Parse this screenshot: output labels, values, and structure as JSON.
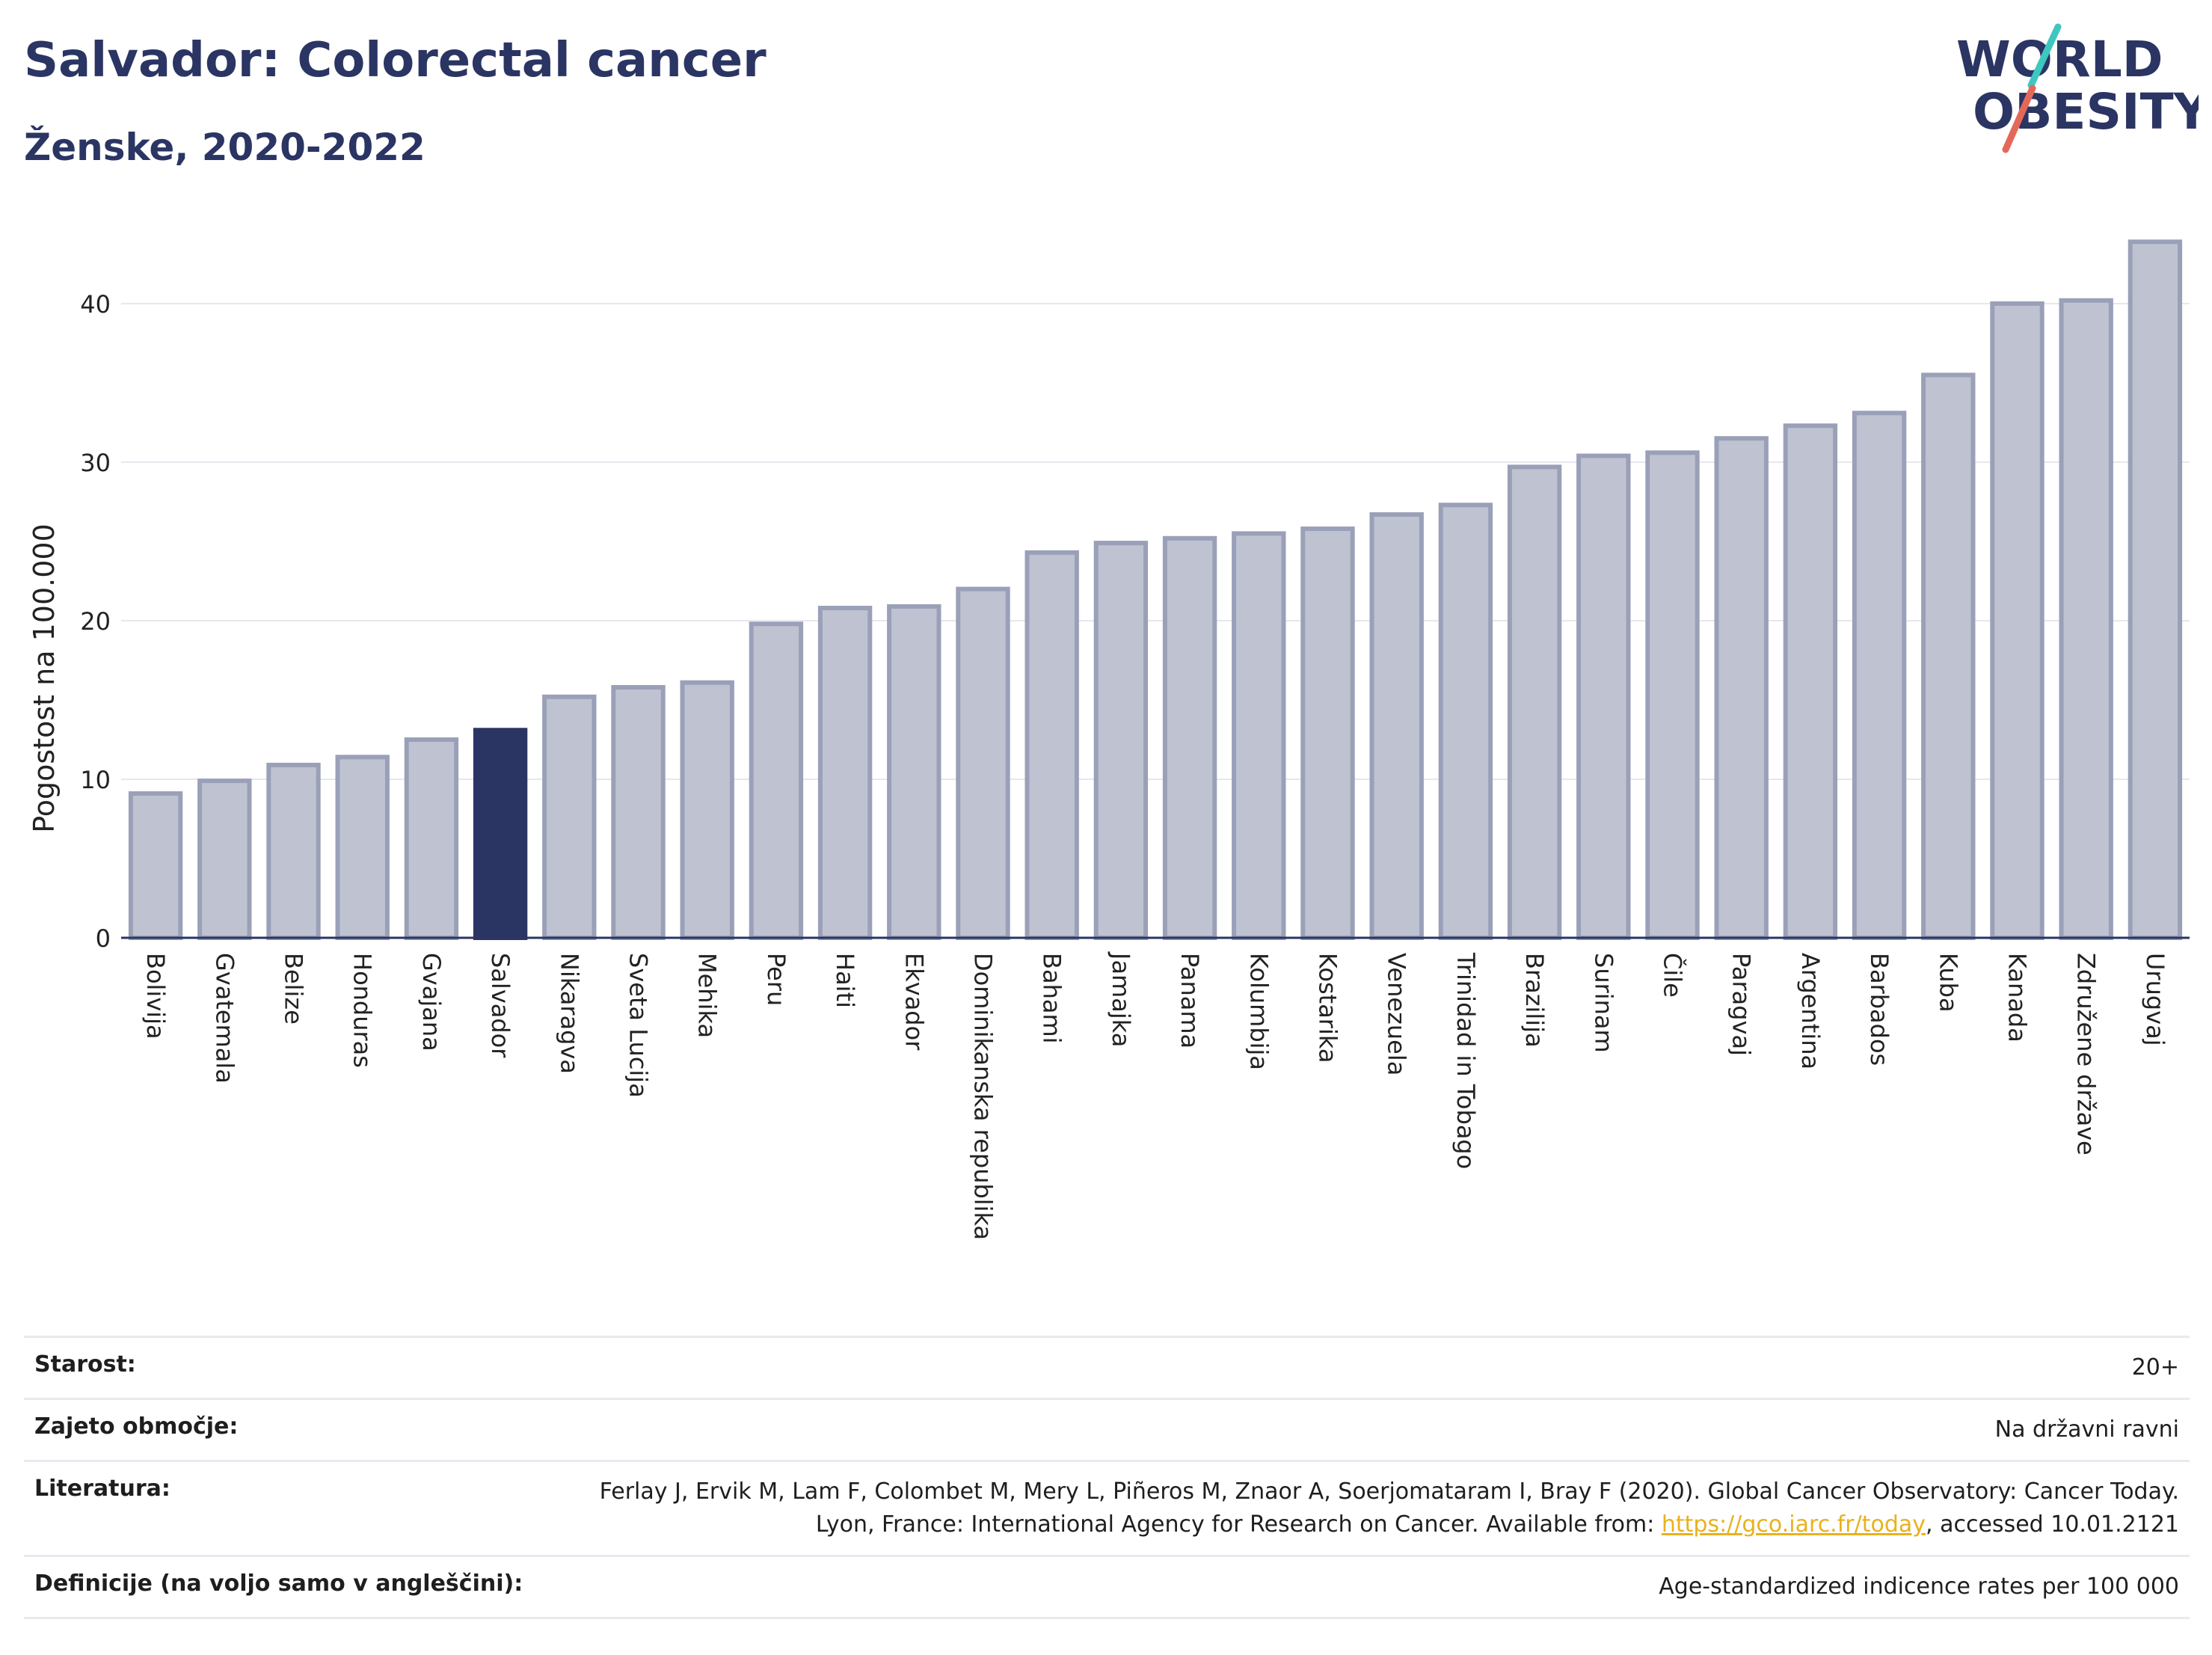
{
  "header": {
    "title": "Salvador: Colorectal cancer",
    "subtitle": "Ženske, 2020-2022"
  },
  "logo": {
    "line1": "WORLD",
    "line2": "OBESITY",
    "text_color": "#2b3563",
    "accent_teal": "#3ec7c0",
    "accent_red": "#e4685a"
  },
  "chart_data": {
    "type": "bar",
    "ylabel": "Pogostost na 100.000",
    "ylim": [
      0,
      45
    ],
    "yticks": [
      0,
      10,
      20,
      30,
      40
    ],
    "grid": true,
    "highlight": "Salvador",
    "colors": {
      "bar": "#bfc3d1",
      "bar_edge": "#9aa0b8",
      "highlight": "#2b3563"
    },
    "categories": [
      "Bolivija",
      "Gvatemala",
      "Belize",
      "Honduras",
      "Gvajana",
      "Salvador",
      "Nikaragva",
      "Sveta Lucija",
      "Mehika",
      "Peru",
      "Haiti",
      "Ekvador",
      "Dominikanska republika",
      "Bahami",
      "Jamajka",
      "Panama",
      "Kolumbija",
      "Kostarika",
      "Venezuela",
      "Trinidad in Tobago",
      "Brazilija",
      "Surinam",
      "Čile",
      "Paragvaj",
      "Argentina",
      "Barbados",
      "Kuba",
      "Kanada",
      "Združene države",
      "Urugvaj"
    ],
    "values": [
      9.1,
      9.9,
      10.9,
      11.4,
      12.5,
      13.1,
      15.2,
      15.8,
      16.1,
      19.8,
      20.8,
      20.9,
      22.0,
      24.3,
      24.9,
      25.2,
      25.5,
      25.8,
      26.7,
      27.3,
      29.7,
      30.4,
      30.6,
      31.5,
      32.3,
      33.1,
      35.5,
      40.0,
      40.2,
      43.9
    ]
  },
  "info": {
    "rows": [
      {
        "key": "Starost:",
        "value": "20+"
      },
      {
        "key": "Zajeto območje:",
        "value": "Na državni ravni"
      },
      {
        "key": "Literatura:",
        "value_before": "Ferlay J, Ervik M, Lam F, Colombet M, Mery L, Piñeros M, Znaor A, Soerjomataram I, Bray F (2020). Global Cancer Observatory: Cancer Today. Lyon, France: International Agency for Research on Cancer. Available from: ",
        "link": "https://gco.iarc.fr/today",
        "value_after": ", accessed 10.01.2121"
      },
      {
        "key": "Definicije (na voljo samo v angleščini):",
        "value": "Age-standardized indicence rates per 100 000"
      }
    ]
  }
}
